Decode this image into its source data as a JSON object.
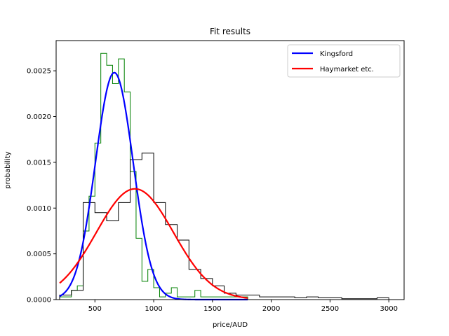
{
  "chart_data": {
    "type": "line",
    "title": "Fit results",
    "xlabel": "price/AUD",
    "ylabel": "probability",
    "xlim": [
      170,
      3130
    ],
    "ylim": [
      0,
      0.00283
    ],
    "xticks": [
      500,
      1000,
      1500,
      2000,
      2500,
      3000
    ],
    "xtick_labels": [
      "500",
      "1000",
      "1500",
      "2000",
      "2500",
      "3000"
    ],
    "yticks": [
      0,
      0.0005,
      0.001,
      0.0015,
      0.002,
      0.0025
    ],
    "ytick_labels": [
      "0.0000",
      "0.0005",
      "0.0010",
      "0.0015",
      "0.0020",
      "0.0025"
    ],
    "grid": false,
    "legend": {
      "placement": "top-right",
      "entries": [
        "Kingsford",
        "Haymarket etc."
      ]
    },
    "series": [
      {
        "name": "Kingsford",
        "kind": "gaussian-fit",
        "color": "#0000ff",
        "mean": 665,
        "sigma": 160,
        "amplitude": 0.00248,
        "x_range": [
          200,
          1800
        ]
      },
      {
        "name": "Haymarket etc.",
        "kind": "gaussian-fit",
        "color": "#ff0000",
        "mean": 840,
        "sigma": 328,
        "amplitude": 0.00121,
        "x_range": [
          200,
          1800
        ]
      }
    ],
    "histograms": [
      {
        "color": "#008000",
        "edges": [
          200,
          250,
          300,
          350,
          400,
          450,
          500,
          550,
          600,
          650,
          700,
          750,
          800,
          850,
          900,
          950,
          1000,
          1050,
          1100,
          1150,
          1200,
          1250,
          1300,
          1350,
          1400,
          1450,
          1500,
          1550,
          1600,
          1650,
          1700,
          1750,
          1800
        ],
        "values": [
          3e-05,
          3e-05,
          0.0001,
          0.00015,
          0.00075,
          0.00113,
          0.00171,
          0.00269,
          0.00256,
          0.00236,
          0.00263,
          0.00227,
          0.0014,
          0.00067,
          0.0002,
          0.00033,
          0.00013,
          3e-05,
          7e-05,
          0.00013,
          3e-05,
          3e-05,
          3e-05,
          0.0001,
          3e-05,
          3e-05,
          3e-05,
          3e-05,
          3e-05,
          3e-05,
          3e-05,
          3e-05
        ]
      },
      {
        "color": "#000000",
        "edges": [
          200,
          300,
          400,
          500,
          600,
          700,
          800,
          900,
          1000,
          1100,
          1200,
          1300,
          1400,
          1500,
          1600,
          1700,
          1800,
          1900,
          2000,
          2100,
          2200,
          2300,
          2400,
          2500,
          2600,
          2700,
          2800,
          2900,
          3000
        ],
        "values": [
          5e-05,
          0.0001,
          0.00106,
          0.00095,
          0.00086,
          0.00106,
          0.00153,
          0.0016,
          0.00106,
          0.00082,
          0.00065,
          0.00033,
          0.00023,
          0.00015,
          7e-05,
          5e-05,
          5e-05,
          3e-05,
          3e-05,
          3e-05,
          2e-05,
          3e-05,
          2e-05,
          2e-05,
          1e-05,
          1e-05,
          1e-05,
          2e-05
        ]
      }
    ]
  }
}
